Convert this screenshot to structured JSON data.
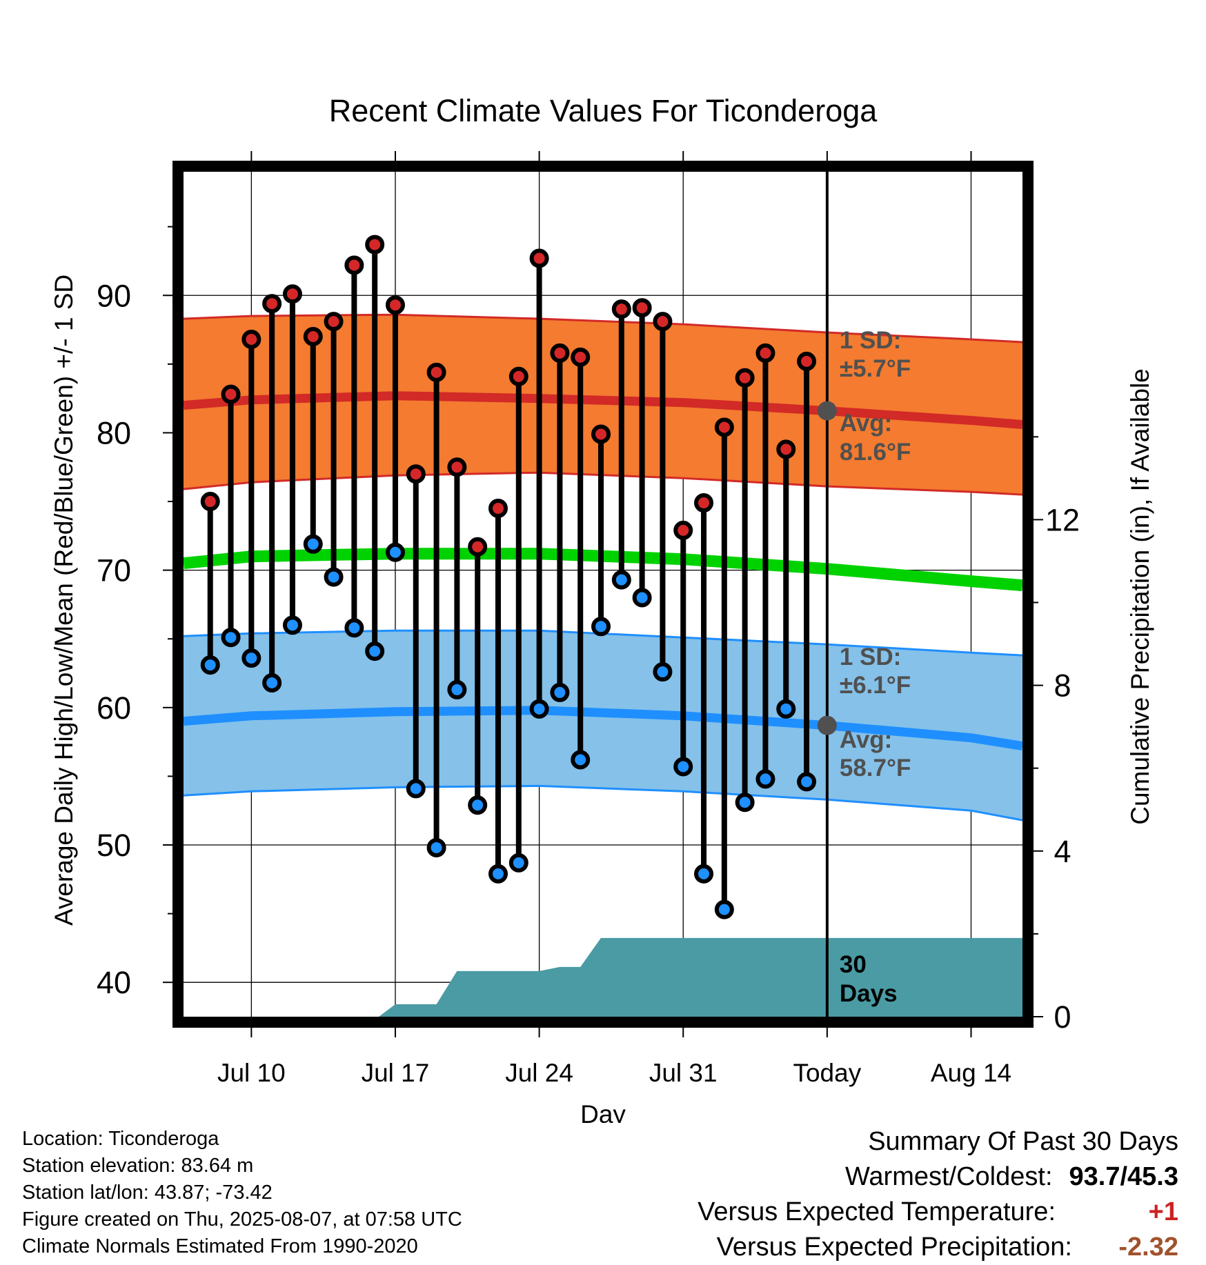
{
  "chart_data": {
    "type": "line",
    "title": "Recent Climate Values For Ticonderoga",
    "xlabel": "Day",
    "ylabel": "Average Daily High/Low/Mean (Red/Blue/Green) +/- 1 SD",
    "y2label": "Cumulative Precipitation (in), If Available",
    "ylim": [
      37.5,
      99
    ],
    "y2lim": [
      0,
      20.4
    ],
    "yticks": [
      40,
      50,
      60,
      70,
      80,
      90
    ],
    "y2ticks": [
      0,
      4,
      8,
      12
    ],
    "x_tick_labels": [
      "Jul 10",
      "Jul 17",
      "Jul 24",
      "Jul 31",
      "Today",
      "Aug 14"
    ],
    "x_tick_days": [
      10,
      17,
      24,
      31,
      38,
      45
    ],
    "xlim": [
      6.7,
      47.5
    ],
    "grid": true,
    "observed": {
      "days": [
        8,
        9,
        10,
        11,
        12,
        13,
        14,
        15,
        16,
        17,
        18,
        19,
        20,
        21,
        22,
        23,
        24,
        25,
        26,
        27,
        28,
        29,
        30,
        31,
        32,
        33,
        34,
        35,
        36,
        37
      ],
      "highs": [
        75.0,
        82.8,
        86.8,
        89.4,
        90.1,
        87.0,
        88.1,
        92.2,
        93.7,
        89.3,
        77.0,
        84.4,
        77.5,
        71.7,
        74.5,
        84.1,
        92.7,
        85.8,
        85.5,
        79.9,
        89.0,
        89.1,
        88.1,
        72.9,
        74.9,
        80.4,
        84.0,
        85.8,
        78.8,
        85.2
      ],
      "lows": [
        63.1,
        65.1,
        63.6,
        61.8,
        66.0,
        71.9,
        69.5,
        65.8,
        64.1,
        71.3,
        54.1,
        49.8,
        61.3,
        52.9,
        47.9,
        48.7,
        59.9,
        61.1,
        56.2,
        65.9,
        69.3,
        68.0,
        62.6,
        55.7,
        47.9,
        45.3,
        53.1,
        54.8,
        59.9,
        54.6
      ]
    },
    "normals": {
      "days": [
        6.7,
        10,
        17,
        24,
        31,
        38,
        45,
        47.5
      ],
      "high_avg": [
        82.0,
        82.4,
        82.7,
        82.5,
        82.2,
        81.6,
        80.9,
        80.6
      ],
      "high_upper": [
        88.3,
        88.5,
        88.6,
        88.3,
        87.9,
        87.3,
        86.8,
        86.6
      ],
      "high_lower": [
        75.9,
        76.4,
        76.9,
        77.1,
        76.7,
        76.1,
        75.7,
        75.5
      ],
      "mean": [
        70.5,
        71.0,
        71.2,
        71.2,
        70.8,
        70.1,
        69.2,
        68.9
      ],
      "low_avg": [
        59.0,
        59.4,
        59.7,
        59.8,
        59.4,
        58.7,
        57.8,
        57.2
      ],
      "low_upper": [
        65.2,
        65.4,
        65.6,
        65.6,
        65.1,
        64.6,
        64.0,
        63.8
      ],
      "low_lower": [
        53.6,
        53.9,
        54.2,
        54.3,
        53.9,
        53.3,
        52.5,
        51.8
      ]
    },
    "precipitation": {
      "days": [
        6.7,
        16.2,
        17,
        19,
        20,
        21,
        22,
        24,
        25,
        26,
        27,
        31,
        38,
        47.5
      ],
      "cumulative": [
        0,
        0,
        0.3,
        0.3,
        1.1,
        1.1,
        1.1,
        1.1,
        1.2,
        1.2,
        1.9,
        1.9,
        1.9,
        1.9
      ]
    },
    "today_marker": {
      "label": "Today",
      "high_sd_line1": "1 SD:",
      "high_sd_line2": "±5.7°F",
      "high_avg_line1": "Avg:",
      "high_avg_line2": "81.6°F",
      "low_sd_line1": "1 SD:",
      "low_sd_line2": "±6.1°F",
      "low_avg_line1": "Avg:",
      "low_avg_line2": "58.7°F",
      "days_line1": "30",
      "days_line2": "Days"
    },
    "colors": {
      "high_band": "#f47b2f",
      "high_line": "#d22a27",
      "mean_line": "#00d200",
      "low_band": "#85c1e9",
      "low_line": "#1f8fff",
      "precip_fill": "#4a9ba4",
      "high_dot": "#d62728",
      "low_dot": "#1e90ff",
      "annotation": "#505050"
    }
  },
  "footer": {
    "location": "Location: Ticonderoga",
    "elevation": "Station elevation: 83.64 m",
    "latlon": "Station lat/lon: 43.87; -73.42",
    "created": "Figure created on Thu, 2025-08-07, at 07:58 UTC",
    "normals": "Climate Normals Estimated From 1990-2020"
  },
  "summary": {
    "title": "Summary Of Past 30 Days",
    "warmest_label": "Warmest/Coldest:",
    "warmest_value": "93.7/45.3",
    "temp_label": "Versus Expected Temperature:",
    "temp_value": "+1",
    "precip_label": "Versus Expected Precipitation:",
    "precip_value": "-2.32",
    "temp_color": "#cc2222",
    "precip_color": "#a0522d"
  }
}
